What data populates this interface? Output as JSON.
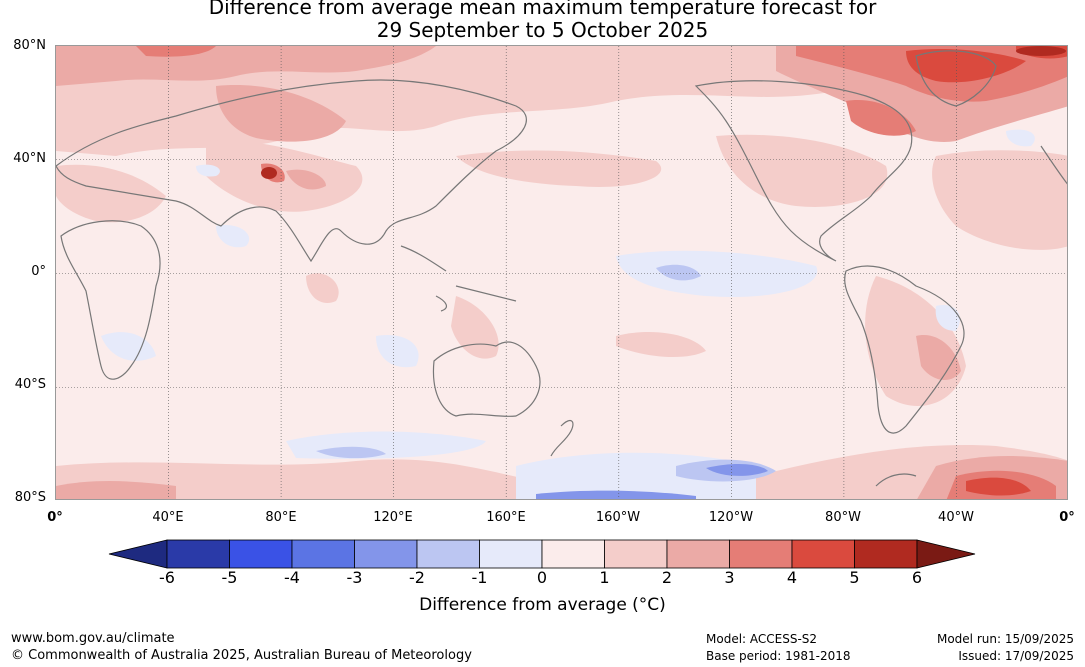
{
  "title": {
    "line1": "Difference from average mean maximum temperature forecast for",
    "line2": "29 September to 5 October 2025"
  },
  "map": {
    "projection": "equirectangular",
    "lon_range": [
      0,
      360
    ],
    "lat_range": [
      -80,
      80
    ],
    "lat_labels": [
      "80°N",
      "40°N",
      "0°",
      "40°S",
      "80°S"
    ],
    "lon_labels": [
      "0°",
      "40°E",
      "80°E",
      "120°E",
      "160°E",
      "160°W",
      "120°W",
      "80°W",
      "40°W",
      "0°"
    ],
    "gridlines": true,
    "ocean_base_anomaly_band": "0 to 1"
  },
  "colorbar": {
    "ticks": [
      "-6",
      "-5",
      "-4",
      "-3",
      "-2",
      "-1",
      "0",
      "1",
      "2",
      "3",
      "4",
      "5",
      "6"
    ],
    "colors": [
      "#2a3aa8",
      "#3a52e6",
      "#5b74e4",
      "#8395ea",
      "#bcc6f2",
      "#e6eafa",
      "#fbeceb",
      "#f4cdca",
      "#ebaaa6",
      "#e57d76",
      "#da4a3e",
      "#b02a20"
    ],
    "under_color": "#1e2a80",
    "over_color": "#7a1a14",
    "label": "Difference from average (°C)"
  },
  "footer": {
    "website": "www.bom.gov.au/climate",
    "copyright": "© Commonwealth of Australia 2025, Australian Bureau of Meteorology",
    "model": "Model: ACCESS-S2",
    "base_period": "Base period: 1981-2018",
    "model_run": "Model run: 15/09/2025",
    "issued": "Issued: 17/09/2025"
  }
}
